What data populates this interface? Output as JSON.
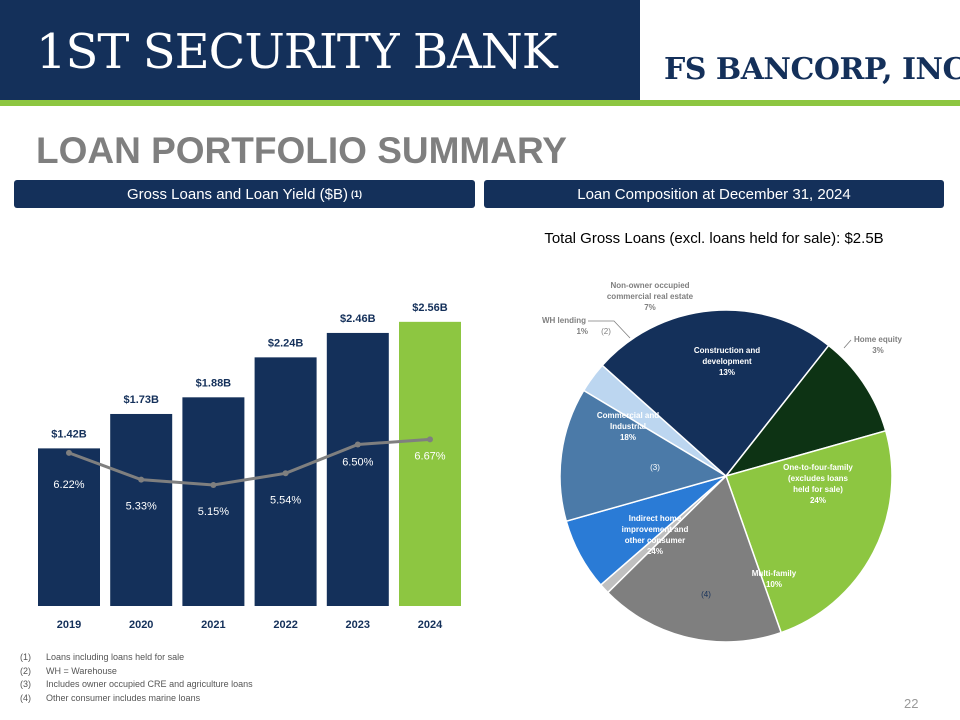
{
  "header": {
    "brand_left": "1ST SECURITY BANK",
    "brand_right": "FS BANCORP, INC."
  },
  "page_title": "LOAN PORTFOLIO SUMMARY",
  "left_panel": {
    "title": "Gross Loans and Loan Yield ($B)",
    "title_note": "(1)"
  },
  "right_panel": {
    "title": "Loan Composition at December 31, 2024",
    "subtitle": "Total Gross Loans (excl. loans held for sale): $2.5B"
  },
  "colors": {
    "navy": "#14305a",
    "green": "#8dc641",
    "gray_line": "#7f7f7f"
  },
  "chart_data": [
    {
      "type": "bar",
      "categories": [
        "2019",
        "2020",
        "2021",
        "2022",
        "2023",
        "2024"
      ],
      "series": [
        {
          "name": "Gross Loans",
          "values": [
            1.42,
            1.73,
            1.88,
            2.24,
            2.46,
            2.56
          ],
          "labels": [
            "$1.42B",
            "$1.73B",
            "$1.88B",
            "$2.24B",
            "$2.46B",
            "$2.56B"
          ]
        },
        {
          "name": "Loan Yield",
          "type": "line",
          "values": [
            6.22,
            5.33,
            5.15,
            5.54,
            6.5,
            6.67
          ],
          "labels": [
            "6.22%",
            "5.33%",
            "5.15%",
            "5.54%",
            "6.50%",
            "6.67%"
          ]
        }
      ],
      "bar_colors": [
        "#14305a",
        "#14305a",
        "#14305a",
        "#14305a",
        "#14305a",
        "#8dc641"
      ]
    },
    {
      "type": "pie",
      "slices": [
        {
          "name": "Home equity",
          "value": 3,
          "label": "3%",
          "color": "#bcd6f0"
        },
        {
          "name": "One-to-four-family (excludes loans held for sale)",
          "value": 24,
          "label": "24%",
          "color": "#14305a"
        },
        {
          "name": "Multi-family",
          "value": 10,
          "label": "10%",
          "color": "#0d3314"
        },
        {
          "name": "Indirect home improvement and other consumer",
          "value": 24,
          "label": "24%",
          "color": "#8dc641",
          "note": "(4)"
        },
        {
          "name": "Commercial and Industrial",
          "value": 18,
          "label": "18%",
          "color": "#7f7f7f",
          "note": "(3)"
        },
        {
          "name": "WH lending",
          "value": 1,
          "label": "1%",
          "color": "#c0c0c0",
          "note": "(2)"
        },
        {
          "name": "Non-owner occupied commercial real estate",
          "value": 7,
          "label": "7%",
          "color": "#2a7bd6"
        },
        {
          "name": "Construction and development",
          "value": 13,
          "label": "13%",
          "color": "#4b7aa8"
        }
      ]
    }
  ],
  "footnotes": [
    {
      "num": "(1)",
      "text": "Loans including loans held for sale"
    },
    {
      "num": "(2)",
      "text": "WH = Warehouse"
    },
    {
      "num": "(3)",
      "text": "Includes owner occupied CRE and agriculture loans"
    },
    {
      "num": "(4)",
      "text": "Other consumer includes marine loans"
    }
  ],
  "page_number": "22"
}
